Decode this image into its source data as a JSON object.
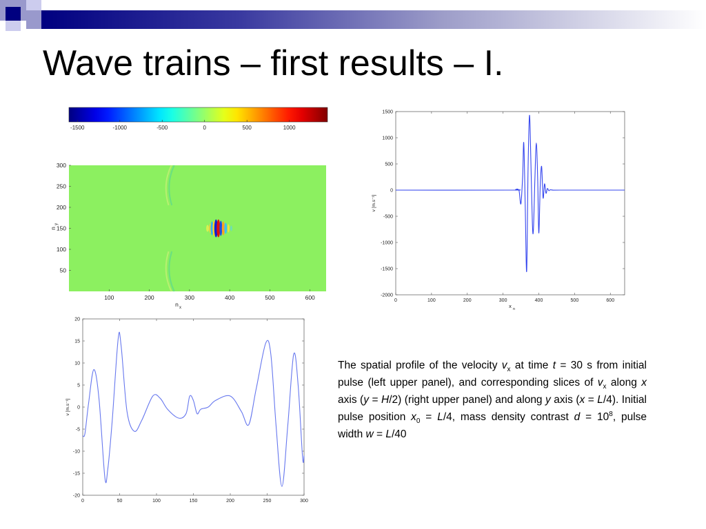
{
  "slide": {
    "title": "Wave trains – first results – I.",
    "accent_color": "#000080"
  },
  "caption": {
    "parts": [
      {
        "t": "The spatial profile of the velocity "
      },
      {
        "t": "v",
        "i": true
      },
      {
        "t": "x",
        "sub": true
      },
      {
        "t": " at time "
      },
      {
        "t": "t",
        "i": true
      },
      {
        "t": " = 30 s from initial pulse (left upper panel), and corresponding slices of "
      },
      {
        "t": "v",
        "i": true
      },
      {
        "t": "x",
        "sub": true
      },
      {
        "t": " along "
      },
      {
        "t": "x",
        "i": true
      },
      {
        "t": " axis  ("
      },
      {
        "t": "y",
        "i": true
      },
      {
        "t": " = "
      },
      {
        "t": "H",
        "i": true
      },
      {
        "t": "/2) (right upper panel) and along "
      },
      {
        "t": "y",
        "i": true
      },
      {
        "t": " axis ("
      },
      {
        "t": "x",
        "i": true
      },
      {
        "t": " = "
      },
      {
        "t": "L",
        "i": true
      },
      {
        "t": "/4). Initial pulse position "
      },
      {
        "t": "x",
        "i": true
      },
      {
        "t": "0",
        "sub": true
      },
      {
        "t": " = "
      },
      {
        "t": "L",
        "i": true
      },
      {
        "t": "/4, mass density contrast "
      },
      {
        "t": "d",
        "i": true
      },
      {
        "t": " = 10"
      },
      {
        "t": "8",
        "sup": true
      },
      {
        "t": ", pulse width "
      },
      {
        "t": "w",
        "i": true
      },
      {
        "t": " = "
      },
      {
        "t": "L",
        "i": true
      },
      {
        "t": "/40"
      }
    ]
  },
  "chart_data": [
    {
      "type": "heatmap",
      "colorbar": {
        "ticks": [
          -1500,
          -1000,
          -500,
          0,
          500,
          1000
        ],
        "range": [
          -1600,
          1450
        ]
      },
      "xlabel": "n",
      "xlabel_sub": "x",
      "ylabel": "n",
      "ylabel_sub": "y",
      "xticks": [
        100,
        200,
        300,
        400,
        500,
        600
      ],
      "yticks": [
        50,
        100,
        150,
        200,
        250,
        300
      ],
      "xlim": [
        0,
        640
      ],
      "ylim": [
        0,
        300
      ],
      "background_color": "#8cf060"
    },
    {
      "type": "line",
      "xlabel": "x",
      "xlabel_sub": "n",
      "ylabel": "v [m.s⁻¹]",
      "xticks": [
        0,
        100,
        200,
        300,
        400,
        500,
        600
      ],
      "yticks": [
        -2000,
        -1500,
        -1000,
        -500,
        0,
        500,
        1000,
        1500
      ],
      "xlim": [
        0,
        640
      ],
      "ylim": [
        -2000,
        1500
      ],
      "line_color": "#3344ee",
      "x": [
        0,
        320,
        335,
        340,
        345,
        350,
        355,
        358,
        362,
        366,
        370,
        374,
        378,
        382,
        385,
        389,
        393,
        397,
        400,
        404,
        408,
        412,
        416,
        420,
        424,
        428,
        432,
        440,
        460,
        640
      ],
      "y": [
        0,
        0,
        10,
        20,
        -20,
        -260,
        300,
        900,
        -300,
        -1550,
        400,
        1430,
        500,
        -650,
        -750,
        200,
        900,
        200,
        -820,
        100,
        450,
        -150,
        120,
        -60,
        30,
        -10,
        5,
        0,
        0,
        0
      ]
    },
    {
      "type": "line",
      "xlabel": "",
      "ylabel": "v [m.s⁻¹]",
      "xticks": [
        0,
        50,
        100,
        150,
        200,
        250,
        300
      ],
      "yticks": [
        -20,
        -15,
        -10,
        -5,
        0,
        5,
        10,
        15,
        20
      ],
      "xlim": [
        0,
        300
      ],
      "ylim": [
        -20,
        20
      ],
      "line_color": "#6677ee",
      "x": [
        0,
        3,
        8,
        15,
        22,
        30,
        34,
        40,
        48,
        52,
        60,
        70,
        80,
        95,
        105,
        115,
        130,
        140,
        145,
        150,
        155,
        160,
        170,
        180,
        200,
        215,
        225,
        235,
        248,
        255,
        262,
        270,
        278,
        286,
        292,
        298,
        300
      ],
      "y": [
        -6.5,
        -6,
        1,
        8.5,
        2,
        -16,
        -14,
        -3,
        15.5,
        14,
        -1,
        -5.5,
        -3,
        2.5,
        2,
        -0.5,
        -2.5,
        -1.5,
        2.5,
        1.5,
        -1.5,
        -0.5,
        0,
        1.5,
        2.5,
        -1,
        -4,
        4,
        14.5,
        12,
        -4,
        -18,
        -4,
        12,
        5,
        -11.5,
        -11
      ]
    }
  ]
}
